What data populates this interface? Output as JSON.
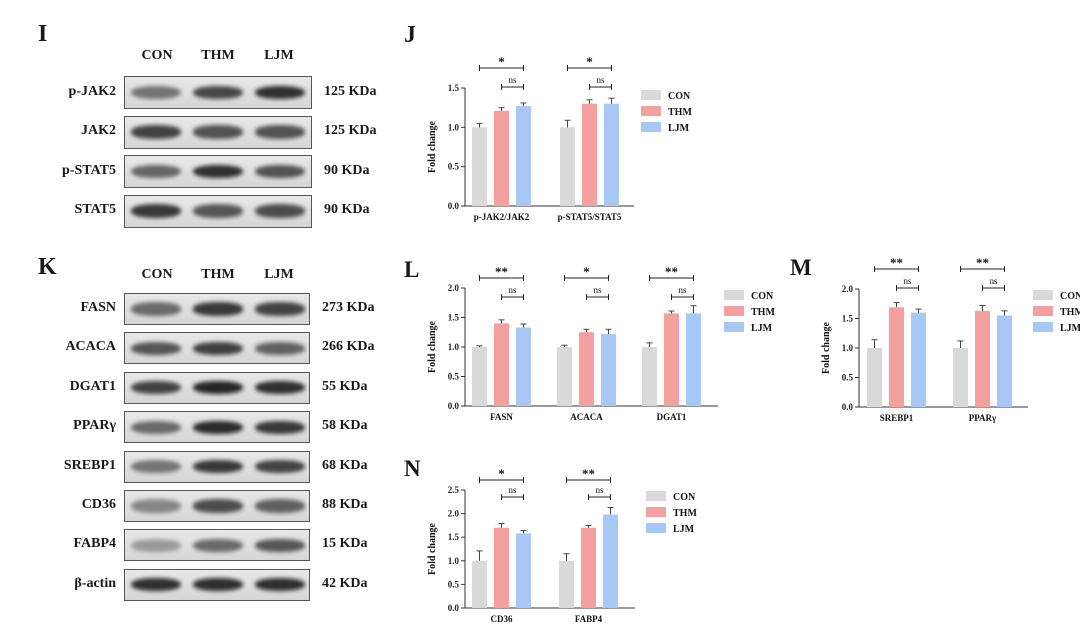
{
  "panels": {
    "I": {
      "letter": "I",
      "lanes": [
        "CON",
        "THM",
        "LJM"
      ],
      "rows": [
        {
          "protein": "p-JAK2",
          "size": "125 KDa",
          "band": [
            0.55,
            0.78,
            0.9
          ]
        },
        {
          "protein": "JAK2",
          "size": "125 KDa",
          "band": [
            0.8,
            0.72,
            0.72
          ]
        },
        {
          "protein": "p-STAT5",
          "size": "90 KDa",
          "band": [
            0.62,
            0.9,
            0.72
          ]
        },
        {
          "protein": "STAT5",
          "size": "90 KDa",
          "band": [
            0.85,
            0.7,
            0.75
          ]
        }
      ]
    },
    "K": {
      "letter": "K",
      "lanes": [
        "CON",
        "THM",
        "LJM"
      ],
      "rows": [
        {
          "protein": "FASN",
          "size": "273 KDa",
          "band": [
            0.6,
            0.85,
            0.8
          ]
        },
        {
          "protein": "ACACA",
          "size": "266 KDa",
          "band": [
            0.7,
            0.82,
            0.65
          ]
        },
        {
          "protein": "DGAT1",
          "size": "55 KDa",
          "band": [
            0.8,
            0.95,
            0.9
          ]
        },
        {
          "protein": "PPARγ",
          "size": "58 KDa",
          "band": [
            0.6,
            0.92,
            0.85
          ]
        },
        {
          "protein": "SREBP1",
          "size": "68 KDa",
          "band": [
            0.55,
            0.85,
            0.8
          ]
        },
        {
          "protein": "CD36",
          "size": "88 KDa",
          "band": [
            0.45,
            0.75,
            0.65
          ]
        },
        {
          "protein": "FABP4",
          "size": "15 KDa",
          "band": [
            0.35,
            0.6,
            0.7
          ]
        },
        {
          "protein": "β-actin",
          "size": "42 KDa",
          "band": [
            0.9,
            0.9,
            0.9
          ]
        }
      ]
    }
  },
  "colors": {
    "CON": "#d9d9d9",
    "THM": "#f4a09f",
    "LJM": "#a7c8f4",
    "band": "#1c1c1c"
  },
  "chart_data": [
    {
      "panel": "J",
      "type": "bar",
      "categories": [
        "p-JAK2/JAK2",
        "p-STAT5/STAT5"
      ],
      "ylabel": "Fold change",
      "ylim": [
        0,
        1.5
      ],
      "yticks": [
        "0.0",
        "0.5",
        "1.0",
        "1.5"
      ],
      "legend": "right",
      "series": [
        {
          "name": "CON",
          "values": [
            1.0,
            1.0
          ],
          "errors": [
            0.05,
            0.09
          ]
        },
        {
          "name": "THM",
          "values": [
            1.21,
            1.3
          ],
          "errors": [
            0.04,
            0.05
          ]
        },
        {
          "name": "LJM",
          "values": [
            1.27,
            1.3
          ],
          "errors": [
            0.04,
            0.07
          ]
        }
      ],
      "significance": [
        [
          "*",
          "ns"
        ],
        [
          "*",
          "ns"
        ]
      ]
    },
    {
      "panel": "L",
      "type": "bar",
      "categories": [
        "FASN",
        "ACACA",
        "DGAT1"
      ],
      "ylabel": "Fold change",
      "ylim": [
        0,
        2.0
      ],
      "yticks": [
        "0.0",
        "0.5",
        "1.0",
        "1.5",
        "2.0"
      ],
      "legend": "right",
      "series": [
        {
          "name": "CON",
          "values": [
            1.0,
            1.0,
            1.0
          ],
          "errors": [
            0.02,
            0.03,
            0.07
          ]
        },
        {
          "name": "THM",
          "values": [
            1.4,
            1.25,
            1.57
          ],
          "errors": [
            0.06,
            0.05,
            0.04
          ]
        },
        {
          "name": "LJM",
          "values": [
            1.33,
            1.22,
            1.57
          ],
          "errors": [
            0.06,
            0.08,
            0.13
          ]
        }
      ],
      "significance": [
        [
          "**",
          "ns"
        ],
        [
          "*",
          "ns"
        ],
        [
          "**",
          "ns"
        ]
      ]
    },
    {
      "panel": "M",
      "type": "bar",
      "categories": [
        "SREBP1",
        "PPARγ"
      ],
      "ylabel": "Fold change",
      "ylim": [
        0,
        2.0
      ],
      "yticks": [
        "0.0",
        "0.5",
        "1.0",
        "1.5",
        "2.0"
      ],
      "legend": "right",
      "series": [
        {
          "name": "CON",
          "values": [
            1.0,
            1.0
          ],
          "errors": [
            0.14,
            0.12
          ]
        },
        {
          "name": "THM",
          "values": [
            1.69,
            1.63
          ],
          "errors": [
            0.08,
            0.09
          ]
        },
        {
          "name": "LJM",
          "values": [
            1.6,
            1.55
          ],
          "errors": [
            0.06,
            0.08
          ]
        }
      ],
      "significance": [
        [
          "**",
          "ns"
        ],
        [
          "**",
          "ns"
        ]
      ]
    },
    {
      "panel": "N",
      "type": "bar",
      "categories": [
        "CD36",
        "FABP4"
      ],
      "ylabel": "Fold change",
      "ylim": [
        0,
        2.5
      ],
      "yticks": [
        "0.0",
        "0.5",
        "1.0",
        "1.5",
        "2.0",
        "2.5"
      ],
      "legend": "right",
      "series": [
        {
          "name": "CON",
          "values": [
            1.0,
            1.0
          ],
          "errors": [
            0.21,
            0.15
          ]
        },
        {
          "name": "THM",
          "values": [
            1.7,
            1.7
          ],
          "errors": [
            0.09,
            0.05
          ]
        },
        {
          "name": "LJM",
          "values": [
            1.58,
            1.98
          ],
          "errors": [
            0.06,
            0.15
          ]
        }
      ],
      "significance": [
        [
          "*",
          "ns"
        ],
        [
          "**",
          "ns"
        ]
      ]
    }
  ]
}
